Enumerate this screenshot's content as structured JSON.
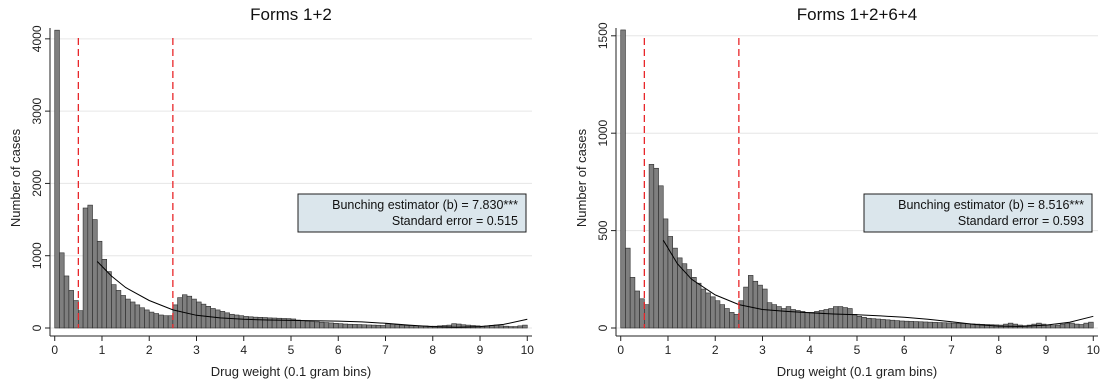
{
  "chart_data": [
    {
      "type": "bar",
      "title": "Forms 1+2",
      "xlabel": "Drug weight (0.1 gram bins)",
      "ylabel": "Number of cases",
      "xlim": [
        -0.1,
        10.1
      ],
      "ylim": [
        0,
        4150
      ],
      "xticks": [
        0,
        1,
        2,
        3,
        4,
        5,
        6,
        7,
        8,
        9,
        10
      ],
      "yticks": [
        0,
        1000,
        2000,
        3000,
        4000
      ],
      "grid": true,
      "bin_width": 0.1,
      "bins_x": [
        0,
        0.1,
        0.2,
        0.3,
        0.4,
        0.5,
        0.6,
        0.7,
        0.8,
        0.9,
        1,
        1.1,
        1.2,
        1.3,
        1.4,
        1.5,
        1.6,
        1.7,
        1.8,
        1.9,
        2,
        2.1,
        2.2,
        2.3,
        2.4,
        2.5,
        2.6,
        2.7,
        2.8,
        2.9,
        3,
        3.1,
        3.2,
        3.3,
        3.4,
        3.5,
        3.6,
        3.7,
        3.8,
        3.9,
        4,
        4.1,
        4.2,
        4.3,
        4.4,
        4.5,
        4.6,
        4.7,
        4.8,
        4.9,
        5,
        5.1,
        5.2,
        5.3,
        5.4,
        5.5,
        5.6,
        5.7,
        5.8,
        5.9,
        6,
        6.1,
        6.2,
        6.3,
        6.4,
        6.5,
        6.6,
        6.7,
        6.8,
        6.9,
        7,
        7.1,
        7.2,
        7.3,
        7.4,
        7.5,
        7.6,
        7.7,
        7.8,
        7.9,
        8,
        8.1,
        8.2,
        8.3,
        8.4,
        8.5,
        8.6,
        8.7,
        8.8,
        8.9,
        9,
        9.1,
        9.2,
        9.3,
        9.4,
        9.5,
        9.6,
        9.7,
        9.8,
        9.9
      ],
      "values": [
        4120,
        1040,
        720,
        520,
        380,
        240,
        1660,
        1700,
        1500,
        1200,
        950,
        780,
        600,
        520,
        450,
        400,
        360,
        320,
        280,
        250,
        220,
        200,
        180,
        170,
        170,
        320,
        420,
        460,
        440,
        400,
        360,
        330,
        300,
        270,
        250,
        230,
        210,
        190,
        180,
        170,
        160,
        155,
        150,
        148,
        145,
        140,
        138,
        135,
        132,
        130,
        125,
        110,
        100,
        95,
        90,
        85,
        80,
        75,
        70,
        65,
        60,
        55,
        52,
        50,
        48,
        45,
        42,
        40,
        38,
        35,
        60,
        55,
        48,
        40,
        35,
        35,
        30,
        30,
        28,
        25,
        25,
        30,
        35,
        40,
        60,
        55,
        45,
        40,
        35,
        30,
        25,
        30,
        35,
        40,
        30,
        25,
        20,
        20,
        30,
        40
      ],
      "fit_curve": {
        "x": [
          0.9,
          1.2,
          1.5,
          2,
          2.5,
          3,
          3.5,
          4,
          4.5,
          5,
          5.5,
          6,
          6.5,
          7,
          7.5,
          8,
          8.5,
          9,
          9.5,
          10
        ],
        "y": [
          920,
          720,
          560,
          380,
          250,
          175,
          140,
          120,
          110,
          105,
          100,
          95,
          85,
          65,
          40,
          20,
          10,
          20,
          50,
          120
        ]
      },
      "vlines": [
        0.5,
        2.5
      ],
      "annotation": [
        "Bunching estimator (b) = 7.830***",
        "Standard error = 0.515"
      ]
    },
    {
      "type": "bar",
      "title": "Forms 1+2+6+4",
      "xlabel": "Drug weight (0.1 gram bins)",
      "ylabel": "Number of cases",
      "xlim": [
        -0.1,
        10.1
      ],
      "ylim": [
        0,
        1540
      ],
      "xticks": [
        0,
        1,
        2,
        3,
        4,
        5,
        6,
        7,
        8,
        9,
        10
      ],
      "yticks": [
        0,
        500,
        1000,
        1500
      ],
      "grid": true,
      "bin_width": 0.1,
      "bins_x": [
        0,
        0.1,
        0.2,
        0.3,
        0.4,
        0.5,
        0.6,
        0.7,
        0.8,
        0.9,
        1,
        1.1,
        1.2,
        1.3,
        1.4,
        1.5,
        1.6,
        1.7,
        1.8,
        1.9,
        2,
        2.1,
        2.2,
        2.3,
        2.4,
        2.5,
        2.6,
        2.7,
        2.8,
        2.9,
        3,
        3.1,
        3.2,
        3.3,
        3.4,
        3.5,
        3.6,
        3.7,
        3.8,
        3.9,
        4,
        4.1,
        4.2,
        4.3,
        4.4,
        4.5,
        4.6,
        4.7,
        4.8,
        4.9,
        5,
        5.1,
        5.2,
        5.3,
        5.4,
        5.5,
        5.6,
        5.7,
        5.8,
        5.9,
        6,
        6.1,
        6.2,
        6.3,
        6.4,
        6.5,
        6.6,
        6.7,
        6.8,
        6.9,
        7,
        7.1,
        7.2,
        7.3,
        7.4,
        7.5,
        7.6,
        7.7,
        7.8,
        7.9,
        8,
        8.1,
        8.2,
        8.3,
        8.4,
        8.5,
        8.6,
        8.7,
        8.8,
        8.9,
        9,
        9.1,
        9.2,
        9.3,
        9.4,
        9.5,
        9.6,
        9.7,
        9.8,
        9.9
      ],
      "values": [
        1530,
        410,
        260,
        190,
        150,
        120,
        840,
        820,
        730,
        560,
        470,
        410,
        360,
        330,
        300,
        260,
        230,
        200,
        180,
        160,
        140,
        120,
        100,
        80,
        70,
        140,
        210,
        270,
        240,
        220,
        200,
        130,
        120,
        110,
        100,
        110,
        95,
        90,
        85,
        80,
        80,
        85,
        90,
        95,
        100,
        110,
        110,
        105,
        100,
        70,
        60,
        55,
        50,
        48,
        46,
        44,
        42,
        40,
        38,
        36,
        35,
        34,
        33,
        32,
        31,
        30,
        29,
        28,
        27,
        26,
        25,
        24,
        23,
        22,
        21,
        20,
        19,
        18,
        17,
        16,
        15,
        20,
        25,
        20,
        15,
        12,
        15,
        20,
        25,
        20,
        15,
        12,
        15,
        20,
        25,
        25,
        20,
        18,
        25,
        30
      ],
      "fit_curve": {
        "x": [
          0.9,
          1.2,
          1.5,
          2,
          2.5,
          3,
          3.5,
          4,
          4.5,
          5,
          5.5,
          6,
          6.5,
          7,
          7.5,
          8,
          8.5,
          9,
          9.5,
          10
        ],
        "y": [
          450,
          330,
          250,
          170,
          120,
          95,
          85,
          78,
          72,
          68,
          62,
          55,
          45,
          32,
          18,
          10,
          8,
          15,
          30,
          60
        ]
      },
      "vlines": [
        0.5,
        2.5
      ],
      "annotation": [
        "Bunching estimator (b) = 8.516***",
        "Standard error = 0.593"
      ]
    }
  ]
}
